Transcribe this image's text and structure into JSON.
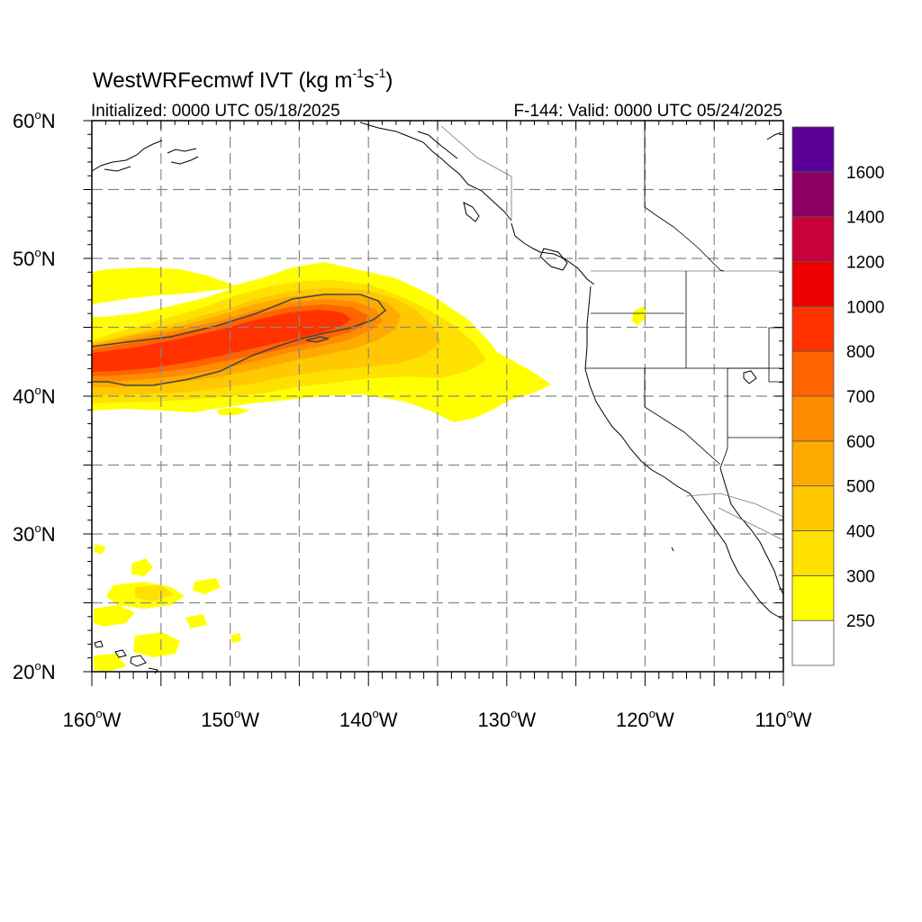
{
  "title": {
    "main": "WestWRFecmwf IVT (kg m",
    "exp1": "-1",
    "mid": "s",
    "exp2": "-1",
    "close": ")"
  },
  "subtitle": {
    "initialized": "Initialized: 0000 UTC 05/18/2025",
    "valid": "F-144: Valid: 0000 UTC 05/24/2025"
  },
  "map": {
    "lon_range": [
      -160,
      -110
    ],
    "lat_range": [
      20,
      60
    ],
    "lat_labels": [
      {
        "value": 60,
        "num": "60",
        "hemi": "N"
      },
      {
        "value": 50,
        "num": "50",
        "hemi": "N"
      },
      {
        "value": 40,
        "num": "40",
        "hemi": "N"
      },
      {
        "value": 30,
        "num": "30",
        "hemi": "N"
      },
      {
        "value": 20,
        "num": "20",
        "hemi": "N"
      }
    ],
    "lon_labels": [
      {
        "value": -160,
        "num": "160",
        "hemi": "W"
      },
      {
        "value": -150,
        "num": "150",
        "hemi": "W"
      },
      {
        "value": -140,
        "num": "140",
        "hemi": "W"
      },
      {
        "value": -130,
        "num": "130",
        "hemi": "W"
      },
      {
        "value": -120,
        "num": "120",
        "hemi": "W"
      },
      {
        "value": -110,
        "num": "110",
        "hemi": "W"
      }
    ],
    "gridlines": {
      "lon_step": 5,
      "lat_step": 5,
      "style": "dashed",
      "color": "#888888"
    }
  },
  "colorbar": {
    "labels": [
      "250",
      "300",
      "400",
      "500",
      "600",
      "700",
      "800",
      "1000",
      "1200",
      "1400",
      "1600"
    ],
    "colors": [
      "#ffffff",
      "#ffff00",
      "#ffe100",
      "#ffc800",
      "#ffaa00",
      "#ff8c00",
      "#ff6400",
      "#ff3200",
      "#ee0000",
      "#c8003c",
      "#8c0064",
      "#5a0096"
    ],
    "levels": [
      250,
      300,
      400,
      500,
      600,
      700,
      800,
      1000,
      1200,
      1400,
      1600
    ]
  }
}
